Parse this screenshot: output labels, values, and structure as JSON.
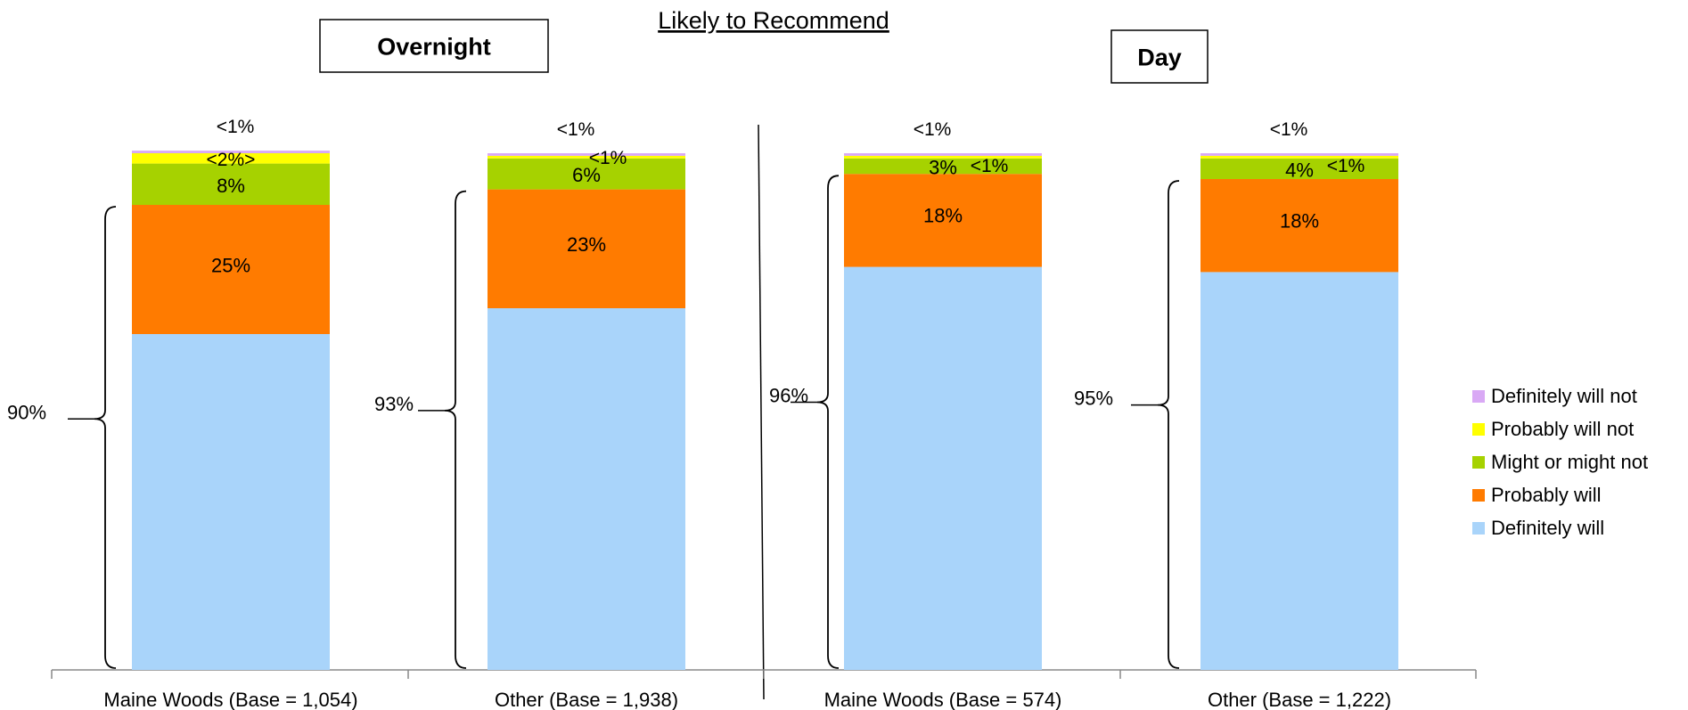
{
  "chart_data": {
    "type": "bar",
    "stacked": true,
    "title": "Likely to Recommend",
    "groups": [
      {
        "label": "Overnight",
        "category_indices": [
          0,
          1
        ]
      },
      {
        "label": "Day",
        "category_indices": [
          2,
          3
        ]
      }
    ],
    "categories": [
      "Maine Woods (Base = 1,054)",
      "Other (Base = 1,938)",
      "Maine Woods (Base = 574)",
      "Other (Base = 1,222)"
    ],
    "series": [
      {
        "name": "Definitely will",
        "color": "#A9D4FA",
        "values": [
          65,
          70,
          78,
          77
        ],
        "labels": [
          "",
          "",
          "",
          ""
        ]
      },
      {
        "name": "Probably will",
        "color": "#FF7B00",
        "values": [
          25,
          23,
          18,
          18
        ],
        "labels": [
          "25%",
          "23%",
          "18%",
          "18%"
        ]
      },
      {
        "name": "Might or might not",
        "color": "#A6D200",
        "values": [
          8,
          6,
          3,
          4
        ],
        "labels": [
          "8%",
          "6%",
          "3%",
          "4%"
        ]
      },
      {
        "name": "Probably will not",
        "color": "#FFFF00",
        "values": [
          2,
          0.5,
          0.5,
          0.5
        ],
        "labels": [
          "<2%>",
          "<1%",
          "<1%",
          "<1%"
        ]
      },
      {
        "name": "Definitely will not",
        "color": "#D9A9F5",
        "values": [
          0.5,
          0.5,
          0.5,
          0.5
        ],
        "labels": [
          "<1%",
          "<1%",
          "<1%",
          "<1%"
        ]
      }
    ],
    "top_two_box": [
      "90%",
      "93%",
      "96%",
      "95%"
    ],
    "ylim": [
      0,
      100
    ],
    "legend_position": "right",
    "grid": false
  }
}
